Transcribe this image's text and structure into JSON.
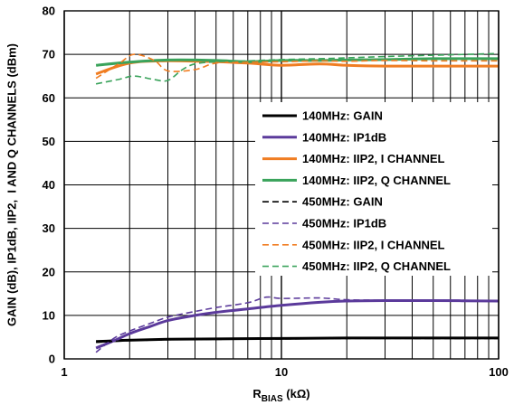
{
  "chart_data": {
    "type": "line",
    "xscale": "log",
    "xlim": [
      1,
      100
    ],
    "ylim": [
      0,
      80
    ],
    "xticks": [
      1,
      10,
      100
    ],
    "xtick_labels": [
      "1",
      "10",
      "100"
    ],
    "yticks": [
      0,
      10,
      20,
      30,
      40,
      50,
      60,
      70,
      80
    ],
    "ytick_labels": [
      "0",
      "10",
      "20",
      "30",
      "40",
      "50",
      "60",
      "70",
      "80"
    ],
    "xlabel": {
      "main": "R",
      "sub": "BIAS",
      "unit": " (kΩ)"
    },
    "ylabel": "GAIN (dB), IP1dB, IIP2,  I AND Q CHANNELS (dBm)",
    "grid": true,
    "legend_position": "center-right",
    "series": [
      {
        "name": "140MHz: GAIN",
        "color": "#000000",
        "style": "solid",
        "x": [
          1.4,
          2,
          3,
          5,
          10,
          20,
          50,
          100
        ],
        "y": [
          4.0,
          4.3,
          4.5,
          4.6,
          4.7,
          4.8,
          4.8,
          4.8
        ]
      },
      {
        "name": "140MHz: IP1dB",
        "color": "#5b3a9b",
        "style": "solid",
        "x": [
          1.4,
          1.7,
          2,
          2.5,
          3,
          4,
          5,
          7,
          10,
          15,
          20,
          30,
          50,
          100
        ],
        "y": [
          2.5,
          4.2,
          5.8,
          7.5,
          8.8,
          10.0,
          10.7,
          11.5,
          12.3,
          13.0,
          13.3,
          13.4,
          13.4,
          13.3
        ]
      },
      {
        "name": "140MHz: IIP2, I CHANNEL",
        "color": "#f07d22",
        "style": "solid",
        "x": [
          1.4,
          2,
          3,
          5,
          7,
          10,
          15,
          20,
          30,
          50,
          100
        ],
        "y": [
          65.5,
          68.0,
          68.5,
          68.3,
          68.0,
          67.5,
          67.8,
          67.5,
          67.3,
          67.3,
          67.3
        ]
      },
      {
        "name": "140MHz: IIP2, Q CHANNEL",
        "color": "#3aa35b",
        "style": "solid",
        "x": [
          1.4,
          2,
          3,
          5,
          7,
          10,
          15,
          20,
          30,
          50,
          100
        ],
        "y": [
          67.5,
          68.2,
          68.7,
          68.6,
          68.3,
          68.6,
          68.6,
          68.7,
          68.8,
          69.0,
          69.0
        ]
      },
      {
        "name": "450MHz: GAIN",
        "color": "#000000",
        "style": "dashed",
        "x": [
          1.4,
          2,
          3,
          5,
          10,
          20,
          50,
          100
        ],
        "y": [
          3.8,
          4.2,
          4.4,
          4.5,
          4.6,
          4.7,
          4.7,
          4.7
        ]
      },
      {
        "name": "450MHz: IP1dB",
        "color": "#5b3a9b",
        "style": "dashed",
        "x": [
          1.4,
          1.7,
          2,
          2.5,
          3,
          4,
          5,
          7,
          8.5,
          10,
          15,
          20,
          30,
          50,
          100
        ],
        "y": [
          1.5,
          4.8,
          6.4,
          8.2,
          9.6,
          10.9,
          11.8,
          12.9,
          14.2,
          13.9,
          14.0,
          13.6,
          13.5,
          13.5,
          13.4
        ]
      },
      {
        "name": "450MHz: IIP2, I CHANNEL",
        "color": "#f07d22",
        "style": "dashed",
        "x": [
          1.4,
          1.8,
          2.1,
          2.6,
          3,
          4,
          5,
          7,
          10,
          15,
          20,
          30,
          50,
          100
        ],
        "y": [
          64.5,
          68.0,
          70.0,
          68.6,
          66.2,
          66.5,
          68.0,
          68.2,
          68.3,
          68.5,
          68.4,
          68.6,
          68.5,
          68.5
        ]
      },
      {
        "name": "450MHz: IIP2, Q CHANNEL",
        "color": "#3aa35b",
        "style": "dashed",
        "x": [
          1.4,
          1.8,
          2.1,
          2.6,
          3,
          3.5,
          4,
          5,
          7,
          10,
          15,
          20,
          30,
          50,
          100
        ],
        "y": [
          63.2,
          64.3,
          65.0,
          64.2,
          64.0,
          66.5,
          67.8,
          68.3,
          68.5,
          68.8,
          69.0,
          69.2,
          69.5,
          69.8,
          70.2
        ]
      }
    ]
  }
}
